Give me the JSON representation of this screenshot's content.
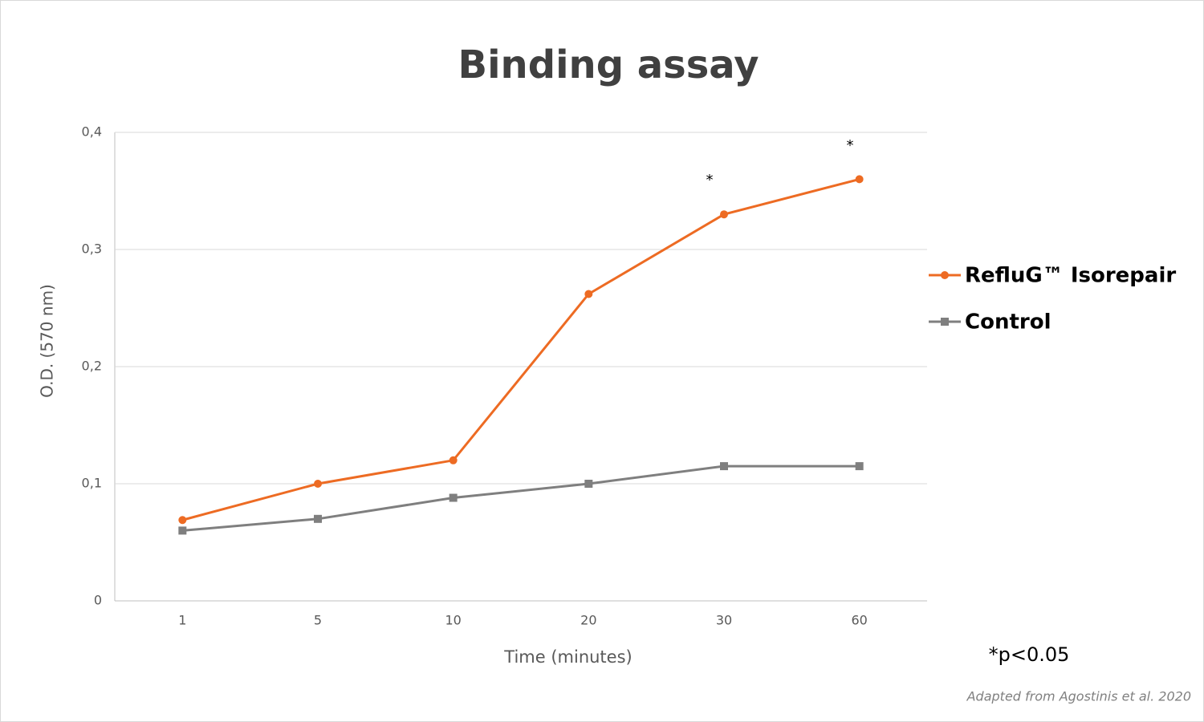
{
  "chart_data": {
    "type": "line",
    "title": "Binding assay",
    "x_label": "Time (minutes)",
    "y_label": "O.D. (570 nm)",
    "categories": [
      "1",
      "5",
      "10",
      "20",
      "30",
      "60"
    ],
    "series": [
      {
        "name": "RefluG™ Isorepair",
        "color": "#ed6b23",
        "marker": "circle",
        "values": [
          0.069,
          0.1,
          0.12,
          0.262,
          0.33,
          0.36
        ]
      },
      {
        "name": "Control",
        "color": "#7f7f7f",
        "marker": "square",
        "values": [
          0.06,
          0.07,
          0.088,
          0.1,
          0.115,
          0.115
        ]
      }
    ],
    "ylim": [
      0,
      0.4
    ],
    "yticks": [
      0,
      {
        "value": 0.1,
        "label": "0,1"
      },
      {
        "value": 0.2,
        "label": "0,2"
      },
      {
        "value": 0.3,
        "label": "0,3"
      },
      {
        "value": 0.4,
        "label": "0,4"
      }
    ],
    "grid": true,
    "legend": "right",
    "annotations": [
      "*",
      "*",
      "*p<0.05",
      "Adapted from Agostinis et al. 2020"
    ]
  }
}
